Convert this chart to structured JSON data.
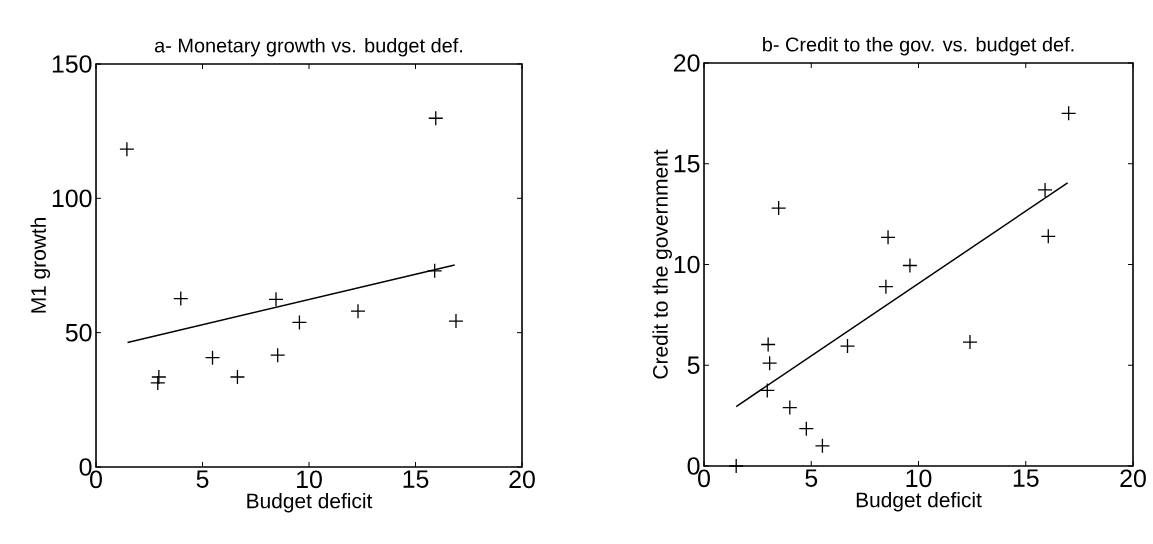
{
  "chart_data": [
    {
      "type": "scatter",
      "title": "a- Monetary growth vs. budget def.",
      "xlabel": "Budget deficit",
      "ylabel": "M1 growth",
      "xlim": [
        0,
        20
      ],
      "ylim": [
        0,
        150
      ],
      "xticks": [
        0,
        5,
        10,
        15,
        20
      ],
      "yticks": [
        0,
        50,
        100,
        150
      ],
      "series": [
        {
          "marker": "cross",
          "color": "#000000",
          "x": [
            1.45,
            15.95,
            3.98,
            8.45,
            15.9,
            12.3,
            9.55,
            16.9,
            5.47,
            8.53,
            6.64,
            2.95,
            2.9
          ],
          "values": [
            118.3,
            129.8,
            62.7,
            62.4,
            73.0,
            58.0,
            53.8,
            54.3,
            40.7,
            41.6,
            33.5,
            33.5,
            31.3
          ]
        },
        {
          "type": "line",
          "marker": "none",
          "color": "#000000",
          "x": [
            1.48,
            16.84
          ],
          "values": [
            46.3,
            75.2
          ]
        }
      ]
    },
    {
      "type": "scatter",
      "title": "b- Credit to the gov. vs. budget def.",
      "xlabel": "Budget deficit",
      "ylabel": "Credit to the government",
      "xlim": [
        0,
        20
      ],
      "ylim": [
        0,
        20
      ],
      "xticks": [
        0,
        5,
        10,
        15,
        20
      ],
      "yticks": [
        0,
        5,
        10,
        15,
        20
      ],
      "series": [
        {
          "marker": "cross",
          "color": "#000000",
          "x": [
            1.5,
            17.0,
            15.9,
            16.05,
            3.48,
            8.58,
            9.6,
            8.48,
            12.4,
            6.69,
            2.99,
            3.06,
            2.95,
            4.0,
            4.77,
            5.52
          ],
          "values": [
            0,
            17.5,
            13.7,
            11.4,
            12.8,
            11.35,
            9.95,
            8.9,
            6.15,
            5.95,
            6.03,
            5.1,
            3.75,
            2.9,
            1.85,
            1.0
          ]
        },
        {
          "type": "line",
          "marker": "none",
          "color": "#000000",
          "x": [
            1.5,
            16.95
          ],
          "values": [
            2.95,
            14.05
          ]
        }
      ]
    }
  ]
}
